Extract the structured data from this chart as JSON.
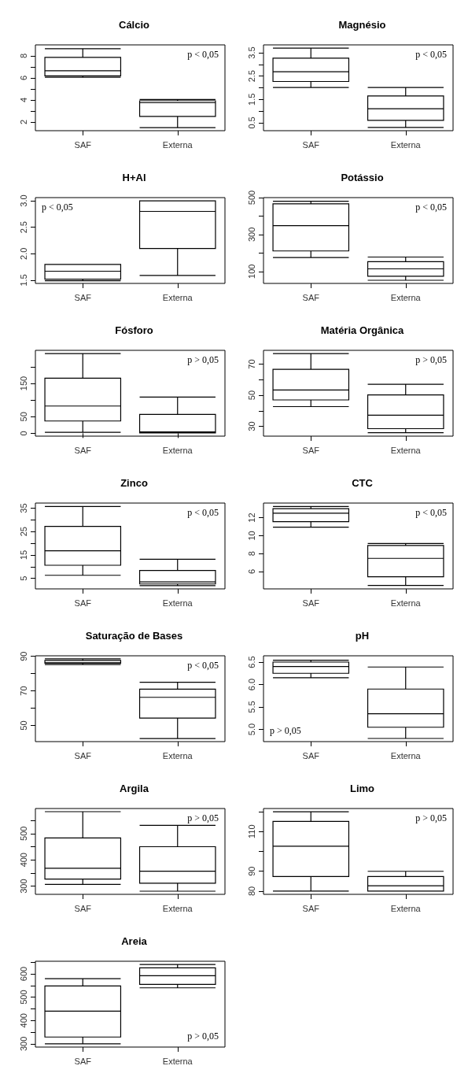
{
  "chart_data": [
    {
      "type": "box",
      "title": "Cálcio",
      "categories": [
        "SAF",
        "Externa"
      ],
      "boxes": [
        {
          "low": 6.05,
          "q1": 6.18,
          "median": 6.65,
          "q3": 7.86,
          "high": 8.65
        },
        {
          "low": 1.48,
          "q1": 2.49,
          "median": 3.74,
          "q3": 3.92,
          "high": 4.03
        }
      ],
      "ylim": [
        1.2,
        9.0
      ],
      "yticks": [
        2,
        {
          "value": 3,
          "label": null
        },
        4,
        {
          "value": 5,
          "label": null
        },
        6,
        {
          "value": 7,
          "label": null
        },
        8
      ],
      "annotations": [
        "p < 0,05"
      ]
    },
    {
      "type": "box",
      "title": "Magnésio",
      "categories": [
        "SAF",
        "Externa"
      ],
      "boxes": [
        {
          "low": 2.01,
          "q1": 2.27,
          "median": 2.69,
          "q3": 3.27,
          "high": 3.7
        },
        {
          "low": 0.3,
          "q1": 0.6,
          "median": 1.1,
          "q3": 1.65,
          "high": 2.01
        }
      ],
      "ylim": [
        0.16,
        3.84
      ],
      "yticks": [
        0.5,
        {
          "value": 1.0,
          "label": null
        },
        1.5,
        {
          "value": 2.0,
          "label": null
        },
        2.5,
        {
          "value": 3.0,
          "label": null
        },
        3.5
      ],
      "annotations": [
        "p < 0,05"
      ]
    },
    {
      "type": "box",
      "title": "H+Al",
      "categories": [
        "SAF",
        "Externa"
      ],
      "boxes": [
        {
          "low": 1.49,
          "q1": 1.52,
          "median": 1.67,
          "q3": 1.8,
          "high": 1.8
        },
        {
          "low": 1.59,
          "q1": 2.1,
          "median": 2.8,
          "q3": 3.0,
          "high": 3.0
        }
      ],
      "ylim": [
        1.44,
        3.06
      ],
      "yticks": [
        1.5,
        {
          "value": 2.0,
          "label": "2.0"
        },
        2.5,
        {
          "value": 3.0,
          "label": "3.0"
        }
      ],
      "annotations": [
        "p < 0,05"
      ]
    },
    {
      "type": "box",
      "title": "Potássio",
      "categories": [
        "SAF",
        "Externa"
      ],
      "boxes": [
        {
          "low": 175,
          "q1": 211,
          "median": 348,
          "q3": 466,
          "high": 480
        },
        {
          "low": 52,
          "q1": 74,
          "median": 114,
          "q3": 153,
          "high": 178
        }
      ],
      "ylim": [
        35,
        500
      ],
      "yticks": [
        100,
        {
          "value": 200,
          "label": null
        },
        300,
        {
          "value": 400,
          "label": null
        },
        500
      ],
      "annotations": [
        "p < 0,05"
      ]
    },
    {
      "type": "box",
      "title": "Fósforo",
      "categories": [
        "SAF",
        "Externa"
      ],
      "boxes": [
        {
          "low": 3,
          "q1": 37,
          "median": 82,
          "q3": 166,
          "high": 240
        },
        {
          "low": 1,
          "q1": 1,
          "median": 4,
          "q3": 57,
          "high": 109
        }
      ],
      "ylim": [
        -8.6,
        249.6
      ],
      "yticks": [
        0,
        50,
        {
          "value": 100,
          "label": null
        },
        150,
        {
          "value": 200,
          "label": null
        }
      ],
      "annotations": [
        "p > 0,05"
      ]
    },
    {
      "type": "box",
      "title": "Matéria Orgânica",
      "categories": [
        "SAF",
        "Externa"
      ],
      "boxes": [
        {
          "low": 42.7,
          "q1": 47.0,
          "median": 53.4,
          "q3": 66.7,
          "high": 76.8
        },
        {
          "low": 25.9,
          "q1": 28.5,
          "median": 37.2,
          "q3": 50.2,
          "high": 57.1
        }
      ],
      "ylim": [
        23.7,
        78.9
      ],
      "yticks": [
        30,
        {
          "value": 40,
          "label": null
        },
        50,
        {
          "value": 60,
          "label": null
        },
        70
      ],
      "annotations": [
        "p > 0,05"
      ]
    },
    {
      "type": "box",
      "title": "Zinco",
      "categories": [
        "SAF",
        "Externa"
      ],
      "boxes": [
        {
          "low": 6.3,
          "q1": 10.6,
          "median": 16.8,
          "q3": 27.2,
          "high": 35.7
        },
        {
          "low": 1.9,
          "q1": 2.6,
          "median": 3.5,
          "q3": 8.4,
          "high": 13.2
        }
      ],
      "ylim": [
        0.5,
        37.2
      ],
      "yticks": [
        5,
        {
          "value": 10,
          "label": null
        },
        15,
        {
          "value": 20,
          "label": null
        },
        25,
        {
          "value": 30,
          "label": null
        },
        35
      ],
      "annotations": [
        "p < 0,05"
      ]
    },
    {
      "type": "box",
      "title": "CTC",
      "categories": [
        "SAF",
        "Externa"
      ],
      "boxes": [
        {
          "low": 10.95,
          "q1": 11.55,
          "median": 12.5,
          "q3": 13.0,
          "high": 13.25
        },
        {
          "low": 4.46,
          "q1": 5.42,
          "median": 7.47,
          "q3": 8.9,
          "high": 9.13
        }
      ],
      "ylim": [
        4.07,
        13.63
      ],
      "yticks": [
        6,
        8,
        10,
        12
      ],
      "annotations": [
        "p < 0,05"
      ]
    },
    {
      "type": "box",
      "title": "Saturação de Bases",
      "categories": [
        "SAF",
        "Externa"
      ],
      "boxes": [
        {
          "low": 85.2,
          "q1": 86.0,
          "median": 86.3,
          "q3": 87.6,
          "high": 88.5
        },
        {
          "low": 42.5,
          "q1": 54.3,
          "median": 66.3,
          "q3": 71.0,
          "high": 75.0
        }
      ],
      "ylim": [
        40.7,
        90.3
      ],
      "yticks": [
        50,
        {
          "value": 60,
          "label": null
        },
        70,
        {
          "value": 80,
          "label": null
        },
        90
      ],
      "annotations": [
        "p < 0,05"
      ]
    },
    {
      "type": "box",
      "title": "pH",
      "categories": [
        "SAF",
        "Externa"
      ],
      "boxes": [
        {
          "low": 6.15,
          "q1": 6.25,
          "median": 6.4,
          "q3": 6.5,
          "high": 6.54
        },
        {
          "low": 4.8,
          "q1": 5.05,
          "median": 5.35,
          "q3": 5.9,
          "high": 6.39
        }
      ],
      "ylim": [
        4.73,
        6.64
      ],
      "yticks": [
        {
          "value": 5,
          "label": "5.0"
        },
        5.5,
        {
          "value": 6,
          "label": "6.0"
        },
        6.5
      ],
      "annotations": [
        "p > 0,05"
      ]
    },
    {
      "type": "box",
      "title": "Argila",
      "categories": [
        "SAF",
        "Externa"
      ],
      "boxes": [
        {
          "low": 307,
          "q1": 327,
          "median": 368,
          "q3": 483,
          "high": 583
        },
        {
          "low": 281,
          "q1": 311,
          "median": 357,
          "q3": 450,
          "high": 531
        }
      ],
      "ylim": [
        269,
        595
      ],
      "yticks": [
        300,
        {
          "value": 350,
          "label": null
        },
        400,
        {
          "value": 450,
          "label": null
        },
        500,
        {
          "value": 550,
          "label": null
        }
      ],
      "annotations": [
        "p > 0,05"
      ]
    },
    {
      "type": "box",
      "title": "Limo",
      "categories": [
        "SAF",
        "Externa"
      ],
      "boxes": [
        {
          "low": 80,
          "q1": 87.4,
          "median": 102.6,
          "q3": 115.1,
          "high": 120
        },
        {
          "low": 80,
          "q1": 80,
          "median": 82.7,
          "q3": 87.4,
          "high": 90
        }
      ],
      "ylim": [
        78.4,
        121.6
      ],
      "yticks": [
        80,
        90,
        {
          "value": 100,
          "label": null
        },
        110,
        {
          "value": 120,
          "label": null
        }
      ],
      "annotations": [
        "p > 0,05"
      ]
    },
    {
      "type": "box",
      "title": "Areia",
      "categories": [
        "SAF",
        "Externa"
      ],
      "boxes": [
        {
          "low": 300,
          "q1": 329,
          "median": 440,
          "q3": 548,
          "high": 579
        },
        {
          "low": 540,
          "q1": 555,
          "median": 592,
          "q3": 626,
          "high": 640
        }
      ],
      "ylim": [
        286,
        654
      ],
      "yticks": [
        300,
        {
          "value": 350,
          "label": null
        },
        400,
        {
          "value": 450,
          "label": null
        },
        500,
        {
          "value": 550,
          "label": null
        },
        600,
        {
          "value": 650,
          "label": null
        }
      ],
      "annotations": [
        "p > 0,05"
      ]
    }
  ]
}
